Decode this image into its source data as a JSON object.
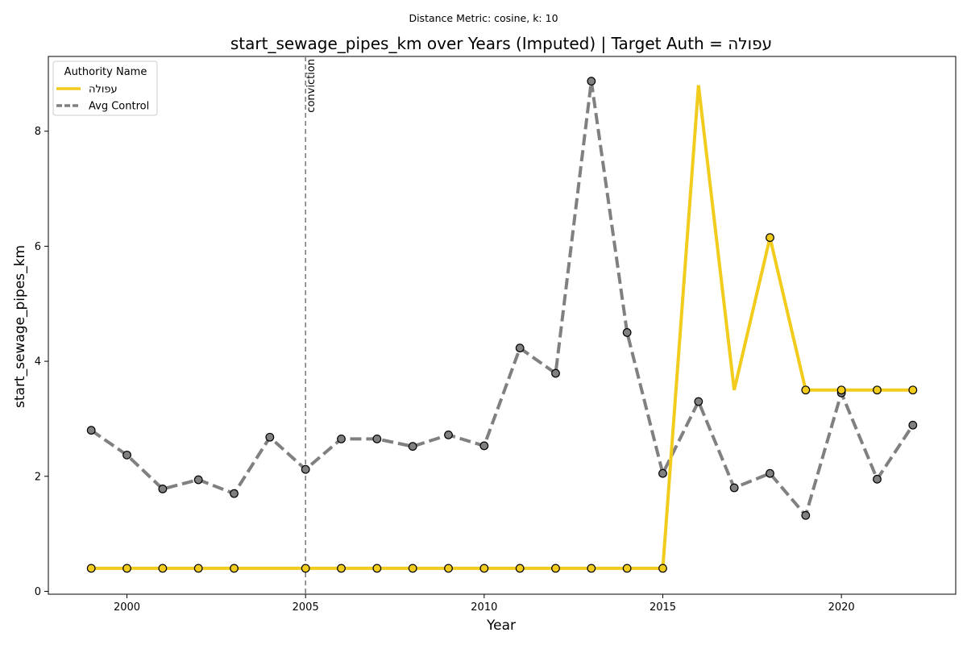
{
  "chart_data": {
    "type": "line",
    "suptitle": "Distance Metric: cosine, k: 10",
    "title": "start_sewage_pipes_km over Years (Imputed) | Target Auth = עפולה",
    "xlabel": "Year",
    "ylabel": "start_sewage_pipes_km",
    "xlim": [
      1997.8,
      2023.2
    ],
    "ylim": [
      -0.05,
      9.3
    ],
    "xticks": [
      2000,
      2005,
      2010,
      2015,
      2020
    ],
    "yticks": [
      0,
      2,
      4,
      6,
      8
    ],
    "grid": false,
    "legend": {
      "title": "Authority Name",
      "placement": "top-left"
    },
    "annotation": {
      "x": 2005,
      "label": "conviction",
      "color": "#808080"
    },
    "series": [
      {
        "name": "עפולה",
        "color": "#f2cc1d",
        "style": "solid",
        "x": [
          1999,
          2000,
          2001,
          2002,
          2003,
          2004,
          2005,
          2006,
          2007,
          2008,
          2009,
          2010,
          2011,
          2012,
          2013,
          2014,
          2015,
          2016,
          2017,
          2018,
          2019,
          2020,
          2021,
          2022
        ],
        "y": [
          0.4,
          0.4,
          0.4,
          0.4,
          0.4,
          0.4,
          0.4,
          0.4,
          0.4,
          0.4,
          0.4,
          0.4,
          0.4,
          0.4,
          0.4,
          0.4,
          0.4,
          8.8,
          3.5,
          6.15,
          3.5,
          3.5,
          3.5,
          3.5
        ],
        "markers": [
          1999,
          2000,
          2001,
          2002,
          2003,
          2005,
          2006,
          2007,
          2008,
          2009,
          2010,
          2011,
          2012,
          2013,
          2014,
          2015,
          2018,
          2019,
          2020,
          2021,
          2022
        ]
      },
      {
        "name": "Avg Control",
        "color": "#808080",
        "style": "dashed",
        "x": [
          1999,
          2000,
          2001,
          2002,
          2003,
          2004,
          2005,
          2006,
          2007,
          2008,
          2009,
          2010,
          2011,
          2012,
          2013,
          2014,
          2015,
          2016,
          2017,
          2018,
          2019,
          2020,
          2021,
          2022
        ],
        "y": [
          2.8,
          2.37,
          1.78,
          1.94,
          1.7,
          2.68,
          2.12,
          2.65,
          2.65,
          2.52,
          2.72,
          2.53,
          4.23,
          3.79,
          8.87,
          4.5,
          2.05,
          3.3,
          1.8,
          2.05,
          1.32,
          3.45,
          1.95,
          2.89
        ],
        "markers": [
          1999,
          2000,
          2001,
          2002,
          2003,
          2004,
          2005,
          2006,
          2007,
          2008,
          2009,
          2010,
          2011,
          2012,
          2013,
          2014,
          2015,
          2016,
          2017,
          2018,
          2019,
          2020,
          2021,
          2022
        ]
      }
    ]
  }
}
